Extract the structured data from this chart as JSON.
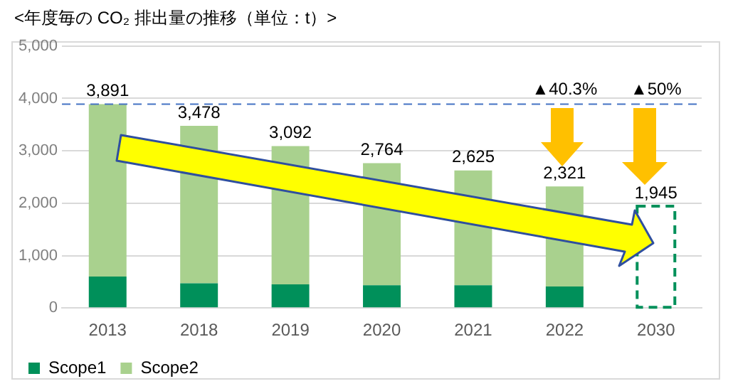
{
  "chart_data": {
    "type": "bar",
    "title": "<年度毎の CO₂ 排出量の推移（単位：t）>",
    "categories": [
      "2013",
      "2018",
      "2019",
      "2020",
      "2021",
      "2022",
      "2030"
    ],
    "stacked": true,
    "series": [
      {
        "name": "Scope1",
        "color": "#00905a",
        "values": [
          600,
          470,
          450,
          435,
          435,
          410,
          null
        ]
      },
      {
        "name": "Scope2",
        "color": "#a9d18e",
        "values": [
          3291,
          3008,
          2642,
          2329,
          2190,
          1911,
          null
        ]
      },
      {
        "color": "#00905a",
        "line_style": "dashed",
        "values": [
          null,
          null,
          null,
          null,
          null,
          null,
          1945
        ]
      }
    ],
    "totals": [
      "3,891",
      "3,478",
      "3,092",
      "2,764",
      "2,625",
      "2,321",
      "1,945"
    ],
    "ylim": [
      0,
      5000
    ],
    "yticks": [
      {
        "value": 0,
        "label": "0"
      },
      {
        "value": 1000,
        "label": "1,000"
      },
      {
        "value": 2000,
        "label": "2,000"
      },
      {
        "value": 3000,
        "label": "3,000"
      },
      {
        "value": 4000,
        "label": "4,000"
      },
      {
        "value": 5000,
        "label": "5,000"
      }
    ],
    "grid": "y",
    "legend": "bottom left",
    "ref_lines": [
      {
        "axis": "y",
        "value": 3891,
        "color": "#4472c4",
        "line_style": "dashed"
      }
    ],
    "annotations": [
      {
        "text": "▲40.3%",
        "x": "2022",
        "y": 3891
      },
      {
        "text": "▲50%",
        "x": "2030",
        "y": 3891
      }
    ]
  }
}
